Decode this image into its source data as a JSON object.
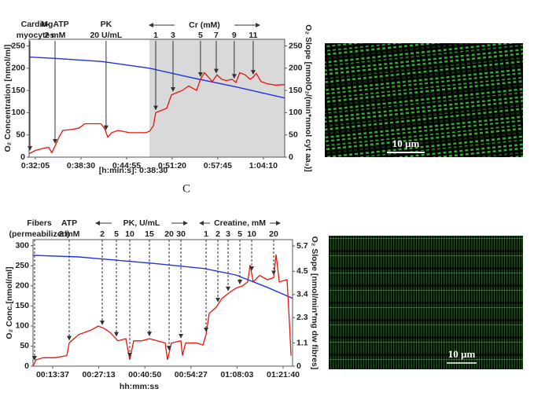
{
  "panel_label": "C",
  "images": [
    {
      "scale_bar": "10 µm"
    },
    {
      "scale_bar": "10 µm"
    }
  ],
  "chart_data": [
    {
      "type": "line",
      "ylabel": "O₂ Concentration [nmol/ml]",
      "y2label": "O₂ Slope [nmolO₂/(min*nmol cyt aa₃)]",
      "xlabel": "[h:min:s]: 0:38:30",
      "arrows": "solid",
      "xlim": [
        1872,
        4030
      ],
      "ylim": [
        0,
        265
      ],
      "y2lim": [
        0,
        265
      ],
      "xticks": [
        {
          "value": 1925,
          "label": "0:32:05"
        },
        {
          "value": 2310,
          "label": "0:38:30"
        },
        {
          "value": 2695,
          "label": "0:44:55"
        },
        {
          "value": 3080,
          "label": "0:51:20"
        },
        {
          "value": 3465,
          "label": "0:57:45"
        },
        {
          "value": 3850,
          "label": "1:04:10"
        }
      ],
      "yticks": [
        0,
        50,
        100,
        150,
        200,
        250
      ],
      "y2ticks": [
        0,
        50,
        100,
        150,
        200,
        250
      ],
      "series": [
        {
          "name": "O2 concentration",
          "color": "#2233dd",
          "x": [
            1872,
            2091,
            2489,
            2888,
            3220,
            3618,
            4029
          ],
          "values": [
            225,
            222,
            215,
            200,
            180,
            158,
            133
          ]
        },
        {
          "name": "O2 slope",
          "color": "#e8140c",
          "axis": "y2",
          "x": [
            1872,
            1925,
            1991,
            2038,
            2064,
            2091,
            2124,
            2157,
            2224,
            2290,
            2343,
            2476,
            2509,
            2536,
            2569,
            2622,
            2722,
            2854,
            2888,
            2921,
            2941,
            2987,
            3034,
            3074,
            3120,
            3166,
            3220,
            3253,
            3286,
            3319,
            3352,
            3386,
            3419,
            3458,
            3498,
            3538,
            3585,
            3618,
            3651,
            3697,
            3737,
            3764,
            3790,
            3830,
            3883,
            3950,
            4029
          ],
          "values": [
            8,
            15,
            20,
            22,
            10,
            25,
            45,
            60,
            62,
            65,
            75,
            75,
            65,
            45,
            55,
            60,
            55,
            55,
            58,
            70,
            100,
            105,
            110,
            140,
            145,
            150,
            160,
            155,
            150,
            175,
            190,
            180,
            170,
            185,
            175,
            172,
            175,
            168,
            190,
            185,
            175,
            180,
            188,
            170,
            165,
            162,
            163
          ]
        }
      ],
      "additions": [
        {
          "lines": [
            "Cardio-",
            "myocytes"
          ],
          "x": 1879
        },
        {
          "lines": [
            "MgATP",
            "2 mM"
          ],
          "x": 2091
        },
        {
          "lines": [
            "PK",
            "20 U/mL"
          ],
          "x": 2522
        }
      ],
      "groups": [
        {
          "title": "Cr (mM)",
          "additions": [
            {
              "label": "1",
              "x": 2941
            },
            {
              "label": "3",
              "x": 3087
            },
            {
              "label": "5",
              "x": 3319
            },
            {
              "label": "7",
              "x": 3452
            },
            {
              "label": "9",
              "x": 3604
            },
            {
              "label": "11",
              "x": 3764
            }
          ]
        }
      ]
    },
    {
      "type": "line",
      "ylabel": "O₂ Conc.[nmol/ml]",
      "y2label": "O₂ Slope [nmol/min*mg dw fibres]",
      "xlabel": "hh:mm:ss",
      "arrows": "dashed",
      "xlim": [
        469,
        5067
      ],
      "ylim": [
        0,
        315
      ],
      "y2lim": [
        0,
        6
      ],
      "xticks": [
        {
          "value": 817,
          "label": "00:13:37"
        },
        {
          "value": 1633,
          "label": "00:27:13"
        },
        {
          "value": 2450,
          "label": "00:40:50"
        },
        {
          "value": 3267,
          "label": "00:54:27"
        },
        {
          "value": 4083,
          "label": "01:08:03"
        },
        {
          "value": 4900,
          "label": "01:21:40"
        }
      ],
      "yticks": [
        0,
        50,
        100,
        150,
        200,
        250,
        300
      ],
      "y2ticks": [
        0,
        1.1,
        2.3,
        3.4,
        4.5,
        5.7
      ],
      "series": [
        {
          "name": "O2 concentration",
          "color": "#2233dd",
          "x": [
            469,
            1277,
            2671,
            3507,
            4064,
            4622,
            5067
          ],
          "values": [
            276,
            272,
            255,
            243,
            227,
            196,
            169
          ]
        },
        {
          "name": "O2 slope",
          "color": "#e8140c",
          "axis": "y2",
          "x": [
            469,
            524,
            650,
            859,
            1068,
            1110,
            1277,
            1486,
            1625,
            1723,
            1834,
            1974,
            2113,
            2183,
            2253,
            2392,
            2531,
            2671,
            2810,
            2852,
            2921,
            3089,
            3117,
            3172,
            3367,
            3479,
            3535,
            3590,
            3716,
            3813,
            3953,
            4064,
            4176,
            4273,
            4315,
            4371,
            4482,
            4622,
            4733,
            4775,
            4831,
            4970,
            5012,
            5040
          ],
          "values": [
            0,
            0.3,
            0.4,
            0.4,
            0.5,
            1.1,
            1.5,
            1.7,
            1.9,
            1.8,
            1.6,
            1.2,
            1.3,
            0.3,
            1.2,
            1.2,
            1.3,
            1.2,
            1.1,
            0.3,
            1.1,
            1.2,
            0.5,
            1.1,
            1.1,
            1.0,
            1.5,
            2.5,
            2.8,
            3.2,
            3.5,
            3.7,
            3.8,
            4.0,
            4.8,
            4.0,
            4.3,
            4.1,
            4.2,
            5.3,
            4.0,
            4.1,
            2.0,
            0.5
          ]
        }
      ],
      "additions": [
        {
          "lines": [
            "Fibers",
            "(permeabilized)"
          ],
          "x": 496
        },
        {
          "lines": [
            "ATP",
            "2 mM"
          ],
          "x": 1110
        }
      ],
      "groups": [
        {
          "title": "PK, U/mL",
          "additions": [
            {
              "label": "2",
              "x": 1695
            },
            {
              "label": "5",
              "x": 1946
            },
            {
              "label": "10",
              "x": 2183
            },
            {
              "label": "15",
              "x": 2531
            },
            {
              "label": "20",
              "x": 2880
            },
            {
              "label": "30",
              "x": 3089
            }
          ]
        },
        {
          "title": "Creatine, mM",
          "additions": [
            {
              "label": "1",
              "x": 3535
            },
            {
              "label": "2",
              "x": 3744
            },
            {
              "label": "3",
              "x": 3925
            },
            {
              "label": "5",
              "x": 4134
            },
            {
              "label": "10",
              "x": 4343
            },
            {
              "label": "20",
              "x": 4733
            }
          ]
        }
      ]
    }
  ]
}
